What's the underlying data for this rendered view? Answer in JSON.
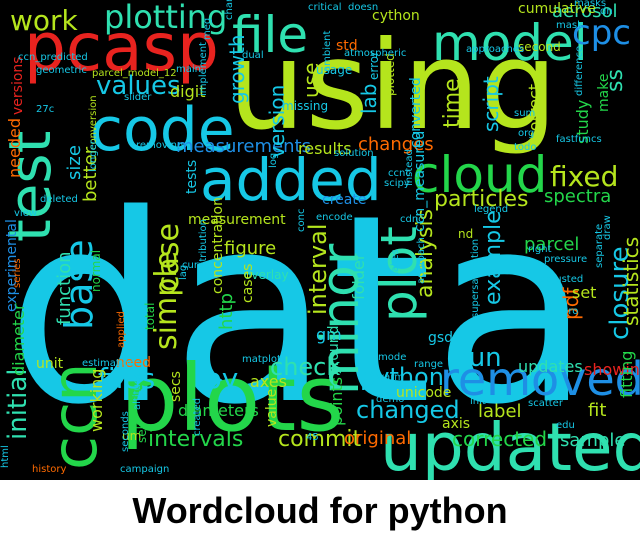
{
  "caption": "Wordcloud for python",
  "colors": {
    "background": "#000000",
    "caption": "#000000",
    "palette": [
      "#16c8e6",
      "#b5e51d",
      "#23d64a",
      "#e8231f",
      "#1e8fe5",
      "#2fe0b0",
      "#ff6a00",
      "#9be01a",
      "#20a7e0"
    ]
  },
  "words": [
    {
      "text": "data",
      "color": "#16c8e6"
    },
    {
      "text": "using",
      "color": "#b5e51d"
    },
    {
      "text": "plots",
      "color": "#23d64a"
    },
    {
      "text": "updated",
      "color": "#2fe0b0"
    },
    {
      "text": "pcasp",
      "color": "#e8231f"
    },
    {
      "text": "code",
      "color": "#16c8e6"
    },
    {
      "text": "added",
      "color": "#16c8e6"
    },
    {
      "text": "file",
      "color": "#2fe0b0"
    },
    {
      "text": "model",
      "color": "#2fe0b0"
    },
    {
      "text": "cloud",
      "color": "#23d64a"
    },
    {
      "text": "test",
      "color": "#2fe0b0"
    },
    {
      "text": "ccn",
      "color": "#23d64a"
    },
    {
      "text": "minor",
      "color": "#2fe0b0"
    },
    {
      "text": "removed",
      "color": "#1e8fe5"
    },
    {
      "text": "plot",
      "color": "#2fe0b0"
    },
    {
      "text": "plotting",
      "color": "#2fe0b0"
    },
    {
      "text": "cpc",
      "color": "#1e8fe5"
    },
    {
      "text": "base",
      "color": "#16c8e6"
    },
    {
      "text": "case",
      "color": "#b5e51d"
    },
    {
      "text": "simple",
      "color": "#b5e51d"
    },
    {
      "text": "work",
      "color": "#b5e51d"
    },
    {
      "text": "values",
      "color": "#16c8e6"
    },
    {
      "text": "files",
      "color": "#16c8e6"
    },
    {
      "text": "py",
      "color": "#16c8e6"
    },
    {
      "text": "initial",
      "color": "#2fe0b0"
    },
    {
      "text": "python",
      "color": "#16c8e6"
    },
    {
      "text": "changed",
      "color": "#16c8e6"
    },
    {
      "text": "run",
      "color": "#16c8e6"
    },
    {
      "text": "fixed",
      "color": "#b5e51d"
    },
    {
      "text": "closure",
      "color": "#16c8e6"
    },
    {
      "text": "particles",
      "color": "#b5e51d"
    },
    {
      "text": "check",
      "color": "#2fe0b0"
    },
    {
      "text": "interval",
      "color": "#b5e51d"
    },
    {
      "text": "time",
      "color": "#b5e51d"
    },
    {
      "text": "script",
      "color": "#16c8e6"
    },
    {
      "text": "commit",
      "color": "#b5e51d"
    },
    {
      "text": "intervals",
      "color": "#23d64a"
    },
    {
      "text": "corrected",
      "color": "#23d64a"
    },
    {
      "text": "example",
      "color": "#16c8e6"
    },
    {
      "text": "analysis",
      "color": "#b5e51d"
    },
    {
      "text": "statistics",
      "color": "#b5e51d"
    },
    {
      "text": "aerosol",
      "color": "#2fe0b0"
    },
    {
      "text": "measurements",
      "color": "#1e8fe5"
    },
    {
      "text": "figure",
      "color": "#b5e51d"
    },
    {
      "text": "spectra",
      "color": "#23d64a"
    },
    {
      "text": "parcel",
      "color": "#23d64a"
    },
    {
      "text": "label",
      "color": "#b5e51d"
    },
    {
      "text": "sample",
      "color": "#2fe0b0"
    },
    {
      "text": "original",
      "color": "#ff6a00"
    },
    {
      "text": "updates",
      "color": "#2fe0b0"
    },
    {
      "text": "changes",
      "color": "#ff6a00"
    },
    {
      "text": "results",
      "color": "#b5e51d"
    },
    {
      "text": "growth",
      "color": "#16c8e6"
    },
    {
      "text": "version",
      "color": "#16c8e6"
    },
    {
      "text": "working",
      "color": "#b5e51d"
    },
    {
      "text": "diameter",
      "color": "#23d64a"
    },
    {
      "text": "function",
      "color": "#2fe0b0"
    },
    {
      "text": "experimental",
      "color": "#1e8fe5"
    },
    {
      "text": "better",
      "color": "#b5e51d"
    },
    {
      "text": "size",
      "color": "#16c8e6"
    },
    {
      "text": "versions",
      "color": "#e8231f"
    },
    {
      "text": "needed",
      "color": "#ff6a00"
    },
    {
      "text": "cumulative",
      "color": "#b5e51d"
    },
    {
      "text": "cython",
      "color": "#b5e51d"
    },
    {
      "text": "std",
      "color": "#ff6a00"
    },
    {
      "text": "digit",
      "color": "#b5e51d"
    },
    {
      "text": "use",
      "color": "#b5e51d"
    },
    {
      "text": "lab",
      "color": "#16c8e6"
    },
    {
      "text": "converted",
      "color": "#16c8e6"
    },
    {
      "text": "ccn_measured",
      "color": "#16c8e6"
    },
    {
      "text": "correct",
      "color": "#b5e51d"
    },
    {
      "text": "study",
      "color": "#23d64a"
    },
    {
      "text": "make",
      "color": "#23d64a"
    },
    {
      "text": "ss",
      "color": "#2fe0b0"
    },
    {
      "text": "diameters",
      "color": "#23d64a"
    },
    {
      "text": "http",
      "color": "#23d64a"
    },
    {
      "text": "gm",
      "color": "#16c8e6"
    },
    {
      "text": "gsd",
      "color": "#16c8e6"
    },
    {
      "text": "pdf",
      "color": "#ff6a00"
    },
    {
      "text": "set",
      "color": "#b5e51d"
    },
    {
      "text": "fit",
      "color": "#b5e51d"
    },
    {
      "text": "showing",
      "color": "#e8231f"
    },
    {
      "text": "fitting",
      "color": "#23d64a"
    },
    {
      "text": "unicode",
      "color": "#b5e51d"
    },
    {
      "text": "folder",
      "color": "#2fe0b0"
    },
    {
      "text": "ground",
      "color": "#2fe0b0"
    },
    {
      "text": "points",
      "color": "#23d64a"
    },
    {
      "text": "axes",
      "color": "#b5e51d"
    },
    {
      "text": "secs",
      "color": "#b5e51d"
    },
    {
      "text": "value",
      "color": "#b5e51d"
    },
    {
      "text": "need",
      "color": "#ff6a00"
    },
    {
      "text": "unit",
      "color": "#b5e51d"
    },
    {
      "text": "axis",
      "color": "#b5e51d"
    },
    {
      "text": "um",
      "color": "#b5e51d"
    },
    {
      "text": "self",
      "color": "#23d64a"
    },
    {
      "text": "concentration",
      "color": "#b5e51d"
    },
    {
      "text": "measurement",
      "color": "#b5e51d"
    },
    {
      "text": "create",
      "color": "#1e8fe5"
    },
    {
      "text": "tests",
      "color": "#16c8e6"
    },
    {
      "text": "overlay",
      "color": "#2fe0b0"
    },
    {
      "text": "normal",
      "color": "#23d64a"
    },
    {
      "text": "total",
      "color": "#23d64a"
    },
    {
      "text": "cases",
      "color": "#b5e51d"
    },
    {
      "text": "error",
      "color": "#16c8e6"
    },
    {
      "text": "plotted",
      "color": "#b5e51d"
    },
    {
      "text": "missing",
      "color": "#16c8e6"
    },
    {
      "text": "usage",
      "color": "#16c8e6"
    },
    {
      "text": "second",
      "color": "#b5e51d"
    },
    {
      "text": "critical",
      "color": "#16c8e6"
    },
    {
      "text": "meg",
      "color": "#16c8e6"
    },
    {
      "text": "dual",
      "color": "#16c8e6"
    },
    {
      "text": "main",
      "color": "#16c8e6"
    },
    {
      "text": "geometric",
      "color": "#16c8e6"
    },
    {
      "text": "parcel_model_12",
      "color": "#b5e51d"
    },
    {
      "text": "conversion",
      "color": "#b5e51d"
    },
    {
      "text": "longer",
      "color": "#16c8e6"
    },
    {
      "text": "removing",
      "color": "#16c8e6"
    },
    {
      "text": "range",
      "color": "#16c8e6"
    },
    {
      "text": "mode",
      "color": "#16c8e6"
    },
    {
      "text": "approaches",
      "color": "#16c8e6"
    },
    {
      "text": "fastfuncs",
      "color": "#16c8e6"
    },
    {
      "text": "scatter",
      "color": "#16c8e6"
    },
    {
      "text": "pressure",
      "color": "#16c8e6"
    },
    {
      "text": "adjusted",
      "color": "#16c8e6"
    },
    {
      "text": "scipy",
      "color": "#16c8e6"
    },
    {
      "text": "legend",
      "color": "#16c8e6"
    },
    {
      "text": "todo",
      "color": "#16c8e6"
    },
    {
      "text": "warm",
      "color": "#16c8e6"
    },
    {
      "text": "history",
      "color": "#ff6a00"
    },
    {
      "text": "campaign",
      "color": "#16c8e6"
    },
    {
      "text": "altitude",
      "color": "#16c8e6"
    },
    {
      "text": "edu",
      "color": "#16c8e6"
    },
    {
      "text": "created",
      "color": "#16c8e6"
    },
    {
      "text": "estimation",
      "color": "#16c8e6"
    },
    {
      "text": "mask",
      "color": "#16c8e6"
    },
    {
      "text": "applied",
      "color": "#ff6a00"
    },
    {
      "text": "solution",
      "color": "#16c8e6"
    },
    {
      "text": "instead",
      "color": "#16c8e6"
    },
    {
      "text": "atmospheric",
      "color": "#16c8e6"
    },
    {
      "text": "ambient",
      "color": "#16c8e6"
    },
    {
      "text": "org",
      "color": "#16c8e6"
    },
    {
      "text": "sum",
      "color": "#16c8e6"
    },
    {
      "text": "draw",
      "color": "#16c8e6"
    },
    {
      "text": "ccnc",
      "color": "#16c8e6"
    },
    {
      "text": "curve",
      "color": "#16c8e6"
    },
    {
      "text": "takes",
      "color": "#16c8e6"
    },
    {
      "text": "encode",
      "color": "#16c8e6"
    },
    {
      "text": "approach",
      "color": "#16c8e6"
    },
    {
      "text": "demo",
      "color": "#16c8e6"
    },
    {
      "text": "lag",
      "color": "#16c8e6"
    },
    {
      "text": "conc",
      "color": "#16c8e6"
    },
    {
      "text": "distribution",
      "color": "#16c8e6"
    },
    {
      "text": "deleted",
      "color": "#16c8e6"
    },
    {
      "text": "view",
      "color": "#16c8e6"
    },
    {
      "text": "nd",
      "color": "#b5e51d"
    },
    {
      "text": "right",
      "color": "#16c8e6"
    },
    {
      "text": "pro",
      "color": "#16c8e6"
    },
    {
      "text": "seconds",
      "color": "#16c8e6"
    },
    {
      "text": "channels",
      "color": "#16c8e6"
    },
    {
      "text": "masks",
      "color": "#16c8e6"
    },
    {
      "text": "doesn",
      "color": "#16c8e6"
    },
    {
      "text": "27c",
      "color": "#16c8e6"
    },
    {
      "text": "ccn_predicted",
      "color": "#16c8e6"
    },
    {
      "text": "implement",
      "color": "#16c8e6"
    },
    {
      "text": "supersaturation",
      "color": "#16c8e6"
    },
    {
      "text": "difference",
      "color": "#16c8e6"
    },
    {
      "text": "separate",
      "color": "#16c8e6"
    },
    {
      "text": "init",
      "color": "#16c8e6"
    },
    {
      "text": "html",
      "color": "#16c8e6"
    },
    {
      "text": "45",
      "color": "#16c8e6"
    },
    {
      "text": "log",
      "color": "#16c8e6"
    },
    {
      "text": "matplotlib",
      "color": "#16c8e6"
    },
    {
      "text": "series",
      "color": "#ff6a00"
    },
    {
      "text": "slider",
      "color": "#16c8e6"
    },
    {
      "text": "cdnc",
      "color": "#16c8e6"
    },
    {
      "text": "dn",
      "color": "#16c8e6"
    }
  ]
}
